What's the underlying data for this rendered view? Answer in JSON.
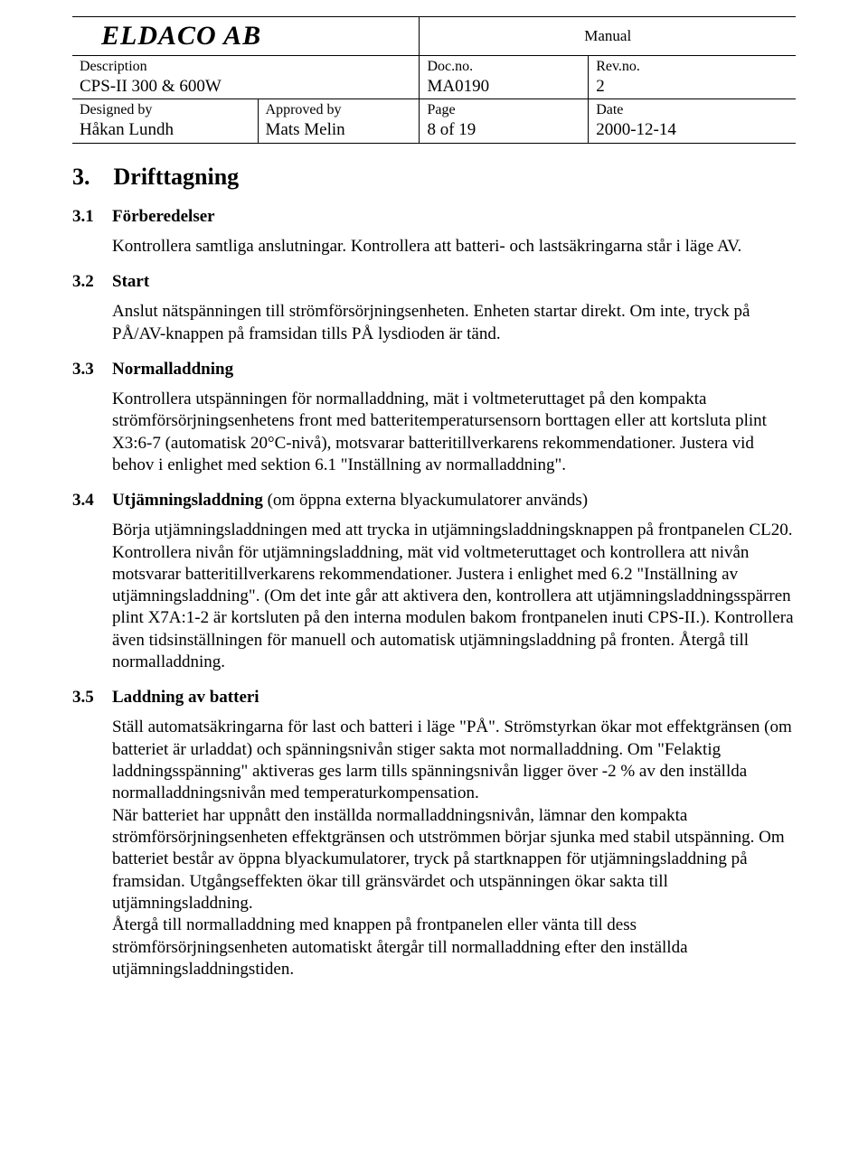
{
  "header": {
    "company": "ELDACO AB",
    "manual": "Manual",
    "description_label": "Description",
    "description_value": "CPS-II 300 & 600W",
    "docno_label": "Doc.no.",
    "docno_value": "MA0190",
    "revno_label": "Rev.no.",
    "revno_value": "2",
    "designedby_label": "Designed by",
    "designedby_value": "Håkan Lundh",
    "approvedby_label": "Approved by",
    "approvedby_value": "Mats Melin",
    "page_label": "Page",
    "page_value": "8 of 19",
    "date_label": "Date",
    "date_value": "2000-12-14"
  },
  "title_num": "3.",
  "title_text": "Drifttagning",
  "sections": {
    "s1": {
      "num": "3.1",
      "label": "Förberedelser",
      "p": "Kontrollera samtliga anslutningar. Kontrollera att batteri- och lastsäkringarna står i läge AV."
    },
    "s2": {
      "num": "3.2",
      "label": "Start",
      "p": "Anslut nätspänningen till strömförsörjningsenheten. Enheten startar direkt. Om inte, tryck på PÅ/AV-knappen på framsidan tills PÅ lysdioden är tänd."
    },
    "s3": {
      "num": "3.3",
      "label": "Normalladdning",
      "p": "Kontrollera utspänningen för normalladdning, mät i voltmeteruttaget på den kompakta strömförsörjningsenhetens front med batteritemperatursensorn borttagen eller att kortsluta plint X3:6-7 (automatisk 20°C-nivå), motsvarar batteritillverkarens rekommendationer. Justera vid behov i enlighet med sektion 6.1 \"Inställning av normalladdning\"."
    },
    "s4": {
      "num": "3.4",
      "label": "Utjämningsladdning",
      "extra": " (om öppna externa blyackumulatorer används)",
      "p": "Börja utjämningsladdningen med att trycka in utjämningsladdningsknappen på frontpanelen CL20. Kontrollera nivån för utjämningsladdning, mät vid voltmeteruttaget och kontrollera att nivån motsvarar batteritillverkarens rekommendationer. Justera i enlighet med 6.2  \"Inställning av utjämningsladdning\". (Om det inte går att aktivera den, kontrollera att utjämningsladdningsspärren plint X7A:1-2 är kortsluten på den interna modulen bakom frontpanelen inuti CPS-II.). Kontrollera även tidsinställningen för manuell och automatisk utjämningsladdning på fronten. Återgå till normalladdning."
    },
    "s5": {
      "num": "3.5",
      "label": "Laddning av batteri",
      "p1": "Ställ automatsäkringarna för last och batteri i läge \"PÅ\". Strömstyrkan ökar mot effektgränsen (om batteriet är urladdat) och spänningsnivån stiger sakta mot normalladdning. Om \"Felaktig laddningsspänning\" aktiveras ges larm tills spänningsnivån ligger över -2 % av den inställda normalladdningsnivån med temperaturkompensation.\nNär batteriet har uppnått den inställda normalladdningsnivån, lämnar den kompakta strömförsörjningsenheten effektgränsen och utströmmen börjar sjunka med stabil utspänning. Om batteriet består av öppna blyackumulatorer, tryck på startknappen för utjämningsladdning på framsidan. Utgångseffekten ökar till gränsvärdet och utspänningen ökar sakta till utjämningsladdning.\nÅtergå till normalladdning med knappen på frontpanelen eller vänta till dess strömförsörjningsenheten automatiskt återgår till normalladdning efter den inställda utjämningsladdningstiden."
    }
  }
}
